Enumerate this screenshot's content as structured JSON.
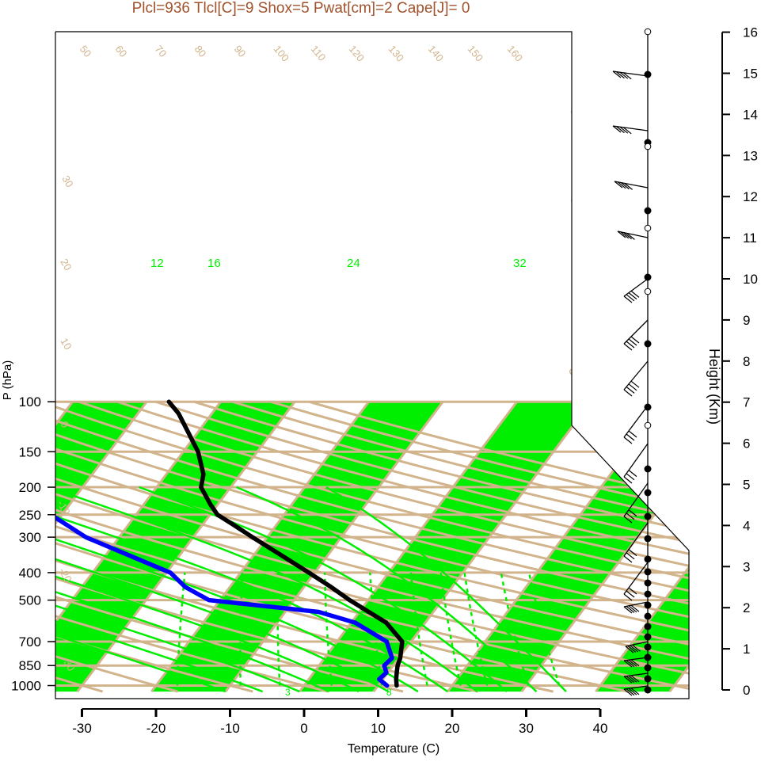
{
  "title": "Plcl=936 Tlcl[C]=9 Shox=5 Pwat[cm]=2 Cape[J]= 0",
  "colors": {
    "band": "#00ee00",
    "isotherm": "#d2b48c",
    "dry_adiabat": "#d2b48c",
    "moist_adiabat": "#00ee00",
    "mixing_ratio": "#00ee00",
    "temperature": "#000000",
    "dewpoint": "#0000ff",
    "title": "#a0522d",
    "isotherm_label": "#d2b48c",
    "adiabat_label": "#d2b48c",
    "moist_label": "#00ee00"
  },
  "chart_data": {
    "type": "skew-t",
    "title": "Plcl=936 Tlcl[C]=9 Shox=5 Pwat[cm]=2 Cape[J]= 0",
    "xlabel": "Temperature (C)",
    "ylabel": "P (hPa)",
    "y2label": "Height (Km)",
    "pressure_ticks": [
      100,
      150,
      200,
      250,
      300,
      400,
      500,
      700,
      850,
      1000
    ],
    "temperature_ticks": [
      -30,
      -20,
      -10,
      0,
      10,
      20,
      30,
      40
    ],
    "height_ticks": [
      0,
      1,
      2,
      3,
      4,
      5,
      6,
      7,
      8,
      9,
      10,
      11,
      12,
      13,
      14,
      15,
      16
    ],
    "isotherm_labels": [
      "-30",
      "-20",
      "-10",
      "0",
      "10",
      "20",
      "30"
    ],
    "dry_adiabat_labels": [
      "50",
      "60",
      "70",
      "80",
      "90",
      "100",
      "110",
      "120",
      "130",
      "140",
      "150",
      "160"
    ],
    "moist_adiabat_labels": [
      "12",
      "16",
      "24",
      "32"
    ],
    "mixing_ratio_labels": [
      "3",
      "8"
    ],
    "temperature_profile": [
      {
        "p": 1000,
        "t": 12.5
      },
      {
        "p": 950,
        "t": 11.8
      },
      {
        "p": 900,
        "t": 11.2
      },
      {
        "p": 850,
        "t": 10.6
      },
      {
        "p": 800,
        "t": 10.2
      },
      {
        "p": 700,
        "t": 8.8
      },
      {
        "p": 600,
        "t": 4.7
      },
      {
        "p": 500,
        "t": -2.5
      },
      {
        "p": 450,
        "t": -6.3
      },
      {
        "p": 400,
        "t": -10.8
      },
      {
        "p": 350,
        "t": -16.0
      },
      {
        "p": 300,
        "t": -22.0
      },
      {
        "p": 270,
        "t": -26.0
      },
      {
        "p": 250,
        "t": -29.0
      },
      {
        "p": 230,
        "t": -31.0
      },
      {
        "p": 200,
        "t": -34.0
      },
      {
        "p": 180,
        "t": -35.0
      },
      {
        "p": 150,
        "t": -38.0
      },
      {
        "p": 130,
        "t": -41.0
      },
      {
        "p": 110,
        "t": -44.5
      },
      {
        "p": 100,
        "t": -47.0
      }
    ],
    "dewpoint_profile": [
      {
        "p": 1000,
        "t": 11.2
      },
      {
        "p": 950,
        "t": 9.5
      },
      {
        "p": 900,
        "t": 9.8
      },
      {
        "p": 850,
        "t": 8.8
      },
      {
        "p": 800,
        "t": 9.1
      },
      {
        "p": 700,
        "t": 6.7
      },
      {
        "p": 600,
        "t": 0.5
      },
      {
        "p": 550,
        "t": -5.5
      },
      {
        "p": 500,
        "t": -21.5
      },
      {
        "p": 450,
        "t": -26.0
      },
      {
        "p": 400,
        "t": -29.5
      },
      {
        "p": 350,
        "t": -36.5
      },
      {
        "p": 300,
        "t": -44.5
      },
      {
        "p": 250,
        "t": -51.5
      },
      {
        "p": 230,
        "t": -55.5
      },
      {
        "p": 200,
        "t": -62.5
      },
      {
        "p": 180,
        "t": -64.5
      },
      {
        "p": 150,
        "t": -66.0
      },
      {
        "p": 100,
        "t": -73.0
      }
    ],
    "grid": true
  }
}
